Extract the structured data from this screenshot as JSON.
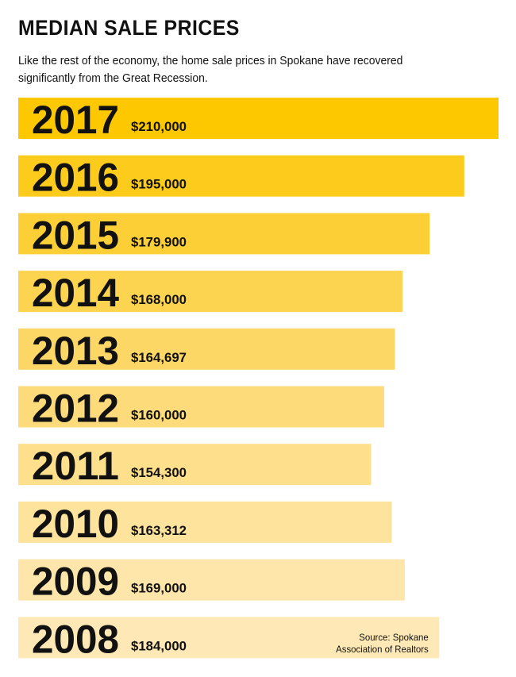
{
  "header": {
    "title": "MEDIAN SALE PRICES",
    "subtitle": "Like the rest of the economy, the home sale prices in Spokane have recovered significantly from the Great Recession."
  },
  "source": {
    "line1": "Source: Spokane",
    "line2": "Association of Realtors"
  },
  "chart_data": {
    "type": "bar",
    "orientation": "horizontal",
    "categories": [
      "2017",
      "2016",
      "2015",
      "2014",
      "2013",
      "2012",
      "2011",
      "2010",
      "2009",
      "2008"
    ],
    "values": [
      210000,
      195000,
      179900,
      168000,
      164697,
      160000,
      154300,
      163312,
      169000,
      184000
    ],
    "value_labels": [
      "$210,000",
      "$195,000",
      "$179,900",
      "$168,000",
      "$164,697",
      "$160,000",
      "$154,300",
      "$163,312",
      "$169,000",
      "$184,000"
    ],
    "colors": [
      "#fdc800",
      "#fdcb1c",
      "#fdcf37",
      "#fdd44f",
      "#fdd766",
      "#fddb7a",
      "#fedf8c",
      "#fee39d",
      "#fee6ab",
      "#fee9b6"
    ],
    "xlim": [
      0,
      210000
    ],
    "grid": false,
    "legend": "none"
  }
}
